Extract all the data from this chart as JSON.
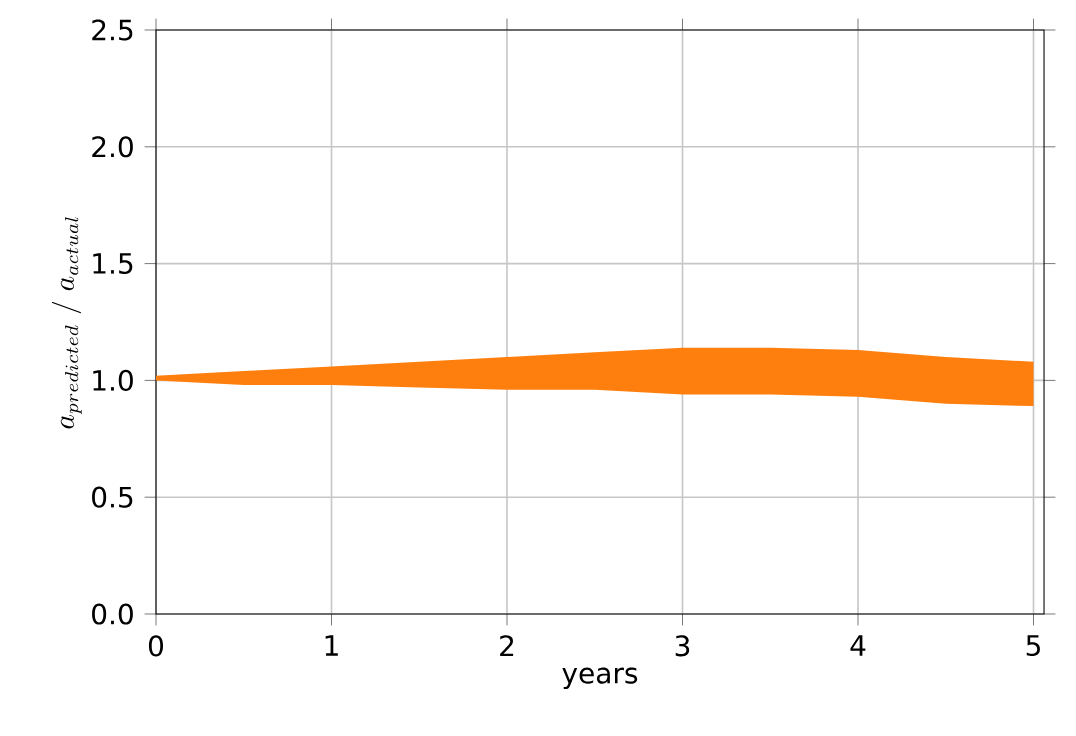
{
  "chart_data": {
    "type": "line",
    "xlabel": "years",
    "ylabel": "a_{predicted}\\ /\\ a_{actual}",
    "x": [
      0,
      0.5,
      1,
      1.5,
      2,
      2.5,
      3,
      3.5,
      4,
      4.5,
      5
    ],
    "series": [
      {
        "color": "#ff7f0e",
        "values": [
          null,
          null,
          null,
          null,
          null,
          null,
          null,
          null,
          null,
          null,
          null
        ],
        "lower": [
          1.0,
          0.98,
          0.98,
          0.97,
          0.96,
          0.96,
          0.94,
          0.94,
          0.93,
          0.9,
          0.89
        ],
        "upper": [
          1.02,
          1.04,
          1.06,
          1.08,
          1.1,
          1.12,
          1.14,
          1.14,
          1.13,
          1.1,
          1.08
        ]
      }
    ],
    "xlim": [
      0,
      5.06
    ],
    "ylim": [
      0,
      2.5
    ],
    "xticks": [
      0,
      1,
      2,
      3,
      4,
      5
    ],
    "yticks": [
      {
        "value": 0,
        "label": "0.0"
      },
      0.5,
      {
        "value": 1,
        "label": "1.0"
      },
      1.5,
      {
        "value": 2,
        "label": "2.0"
      },
      2.5
    ],
    "grid": true
  }
}
